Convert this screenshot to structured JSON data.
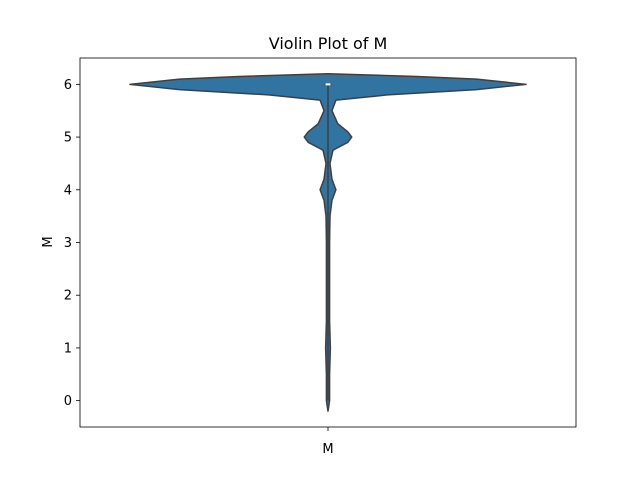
{
  "chart_data": {
    "type": "violin",
    "title": "Violin Plot of M",
    "xlabel": "",
    "ylabel": "M",
    "categories": [
      "M"
    ],
    "ylim": [
      -0.5,
      6.5
    ],
    "yticks": [
      0,
      1,
      2,
      3,
      4,
      5,
      6
    ],
    "grid": false,
    "legend": "none",
    "series": [
      {
        "category": "M",
        "color": "#3274a1",
        "median": 6,
        "q1": 6,
        "q3": 6,
        "min": 0,
        "max": 6,
        "density": [
          [
            -0.2,
            0.0
          ],
          [
            0.0,
            0.008
          ],
          [
            0.5,
            0.008
          ],
          [
            1.0,
            0.012
          ],
          [
            1.5,
            0.008
          ],
          [
            2.0,
            0.008
          ],
          [
            2.5,
            0.008
          ],
          [
            3.0,
            0.008
          ],
          [
            3.5,
            0.01
          ],
          [
            3.8,
            0.02
          ],
          [
            4.0,
            0.04
          ],
          [
            4.2,
            0.02
          ],
          [
            4.5,
            0.01
          ],
          [
            4.75,
            0.025
          ],
          [
            4.9,
            0.1
          ],
          [
            5.0,
            0.12
          ],
          [
            5.1,
            0.1
          ],
          [
            5.25,
            0.05
          ],
          [
            5.5,
            0.02
          ],
          [
            5.7,
            0.04
          ],
          [
            5.8,
            0.3
          ],
          [
            5.9,
            0.75
          ],
          [
            6.0,
            1.0
          ],
          [
            6.1,
            0.75
          ],
          [
            6.15,
            0.45
          ],
          [
            6.2,
            0.0
          ]
        ]
      }
    ]
  }
}
